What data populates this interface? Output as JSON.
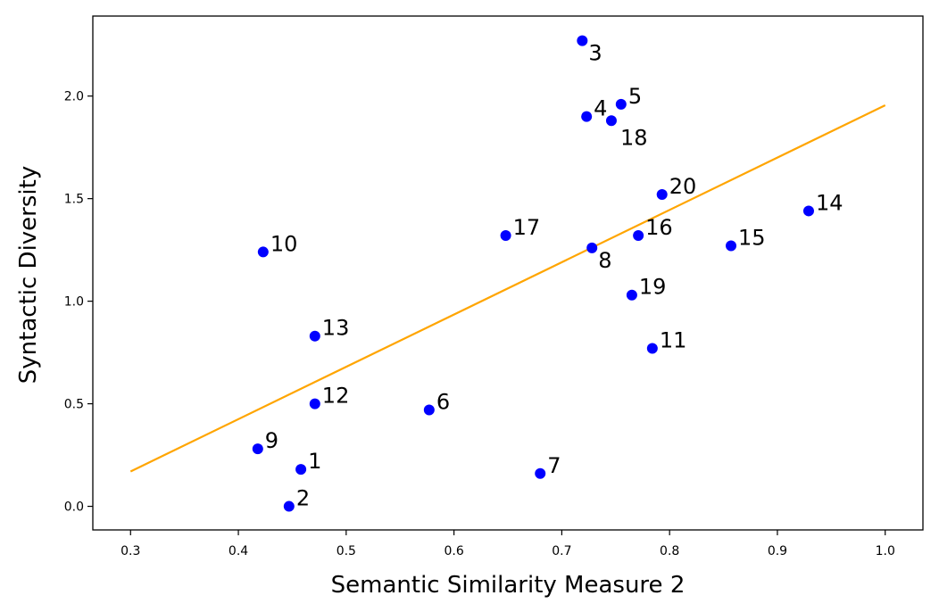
{
  "chart_data": {
    "type": "scatter",
    "xlabel": "Semantic Similarity Measure 2",
    "ylabel": "Syntactic Diversity",
    "xlim": [
      0.265,
      1.035
    ],
    "ylim": [
      -0.115,
      2.39
    ],
    "x_ticks": [
      0.3,
      0.4,
      0.5,
      0.6,
      0.7,
      0.8,
      0.9,
      1.0
    ],
    "x_tick_labels": [
      "0.3",
      "0.4",
      "0.5",
      "0.6",
      "0.7",
      "0.8",
      "0.9",
      "1.0"
    ],
    "y_ticks": [
      0.0,
      0.5,
      1.0,
      1.5,
      2.0
    ],
    "y_tick_labels": [
      "0.0",
      "0.5",
      "1.0",
      "1.5",
      "2.0"
    ],
    "grid": false,
    "legend": "none",
    "colors": {
      "points": "#0000ff",
      "trend_line": "#ffa500"
    },
    "points": [
      {
        "label": "1",
        "x": 0.458,
        "y": 0.18
      },
      {
        "label": "2",
        "x": 0.447,
        "y": 0.0
      },
      {
        "label": "3",
        "x": 0.719,
        "y": 2.27
      },
      {
        "label": "4",
        "x": 0.723,
        "y": 1.9
      },
      {
        "label": "5",
        "x": 0.755,
        "y": 1.96
      },
      {
        "label": "6",
        "x": 0.577,
        "y": 0.47
      },
      {
        "label": "7",
        "x": 0.68,
        "y": 0.16
      },
      {
        "label": "8",
        "x": 0.728,
        "y": 1.26
      },
      {
        "label": "9",
        "x": 0.418,
        "y": 0.28
      },
      {
        "label": "10",
        "x": 0.423,
        "y": 1.24
      },
      {
        "label": "11",
        "x": 0.784,
        "y": 0.77
      },
      {
        "label": "12",
        "x": 0.471,
        "y": 0.5
      },
      {
        "label": "13",
        "x": 0.471,
        "y": 0.83
      },
      {
        "label": "14",
        "x": 0.929,
        "y": 1.44
      },
      {
        "label": "15",
        "x": 0.857,
        "y": 1.27
      },
      {
        "label": "16",
        "x": 0.771,
        "y": 1.32
      },
      {
        "label": "17",
        "x": 0.648,
        "y": 1.32
      },
      {
        "label": "18",
        "x": 0.746,
        "y": 1.88
      },
      {
        "label": "19",
        "x": 0.765,
        "y": 1.03
      },
      {
        "label": "20",
        "x": 0.793,
        "y": 1.52
      }
    ],
    "trend_line": {
      "x": [
        0.3,
        1.0
      ],
      "y": [
        0.17,
        1.955
      ]
    }
  }
}
